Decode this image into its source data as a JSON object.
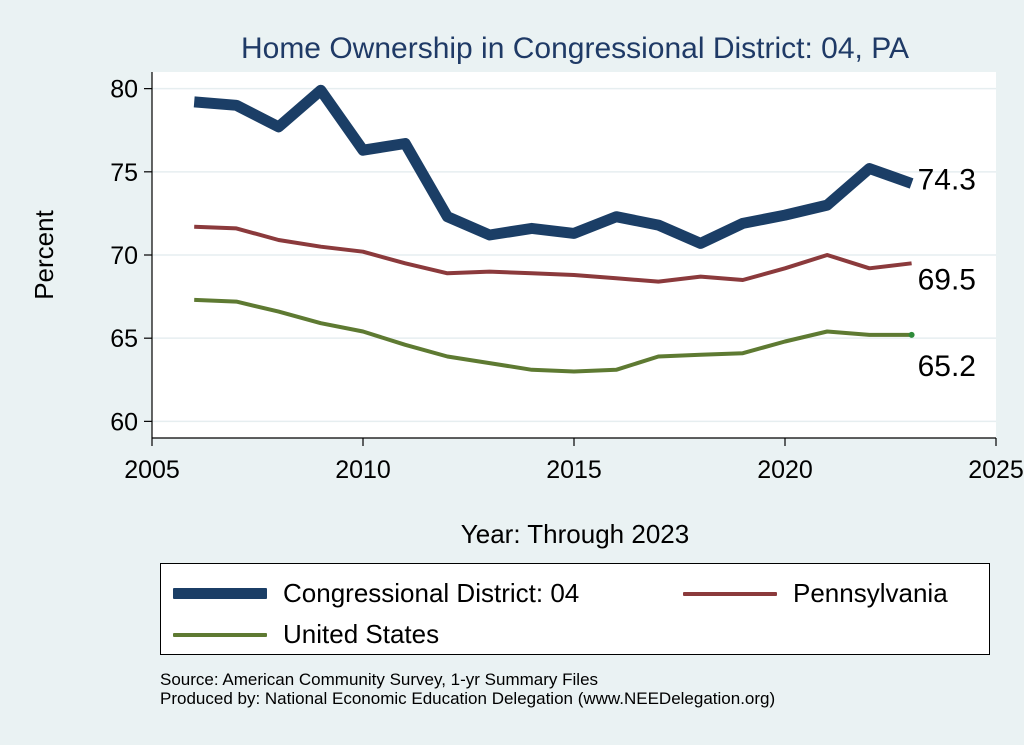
{
  "chart_data": {
    "type": "line",
    "title": "Home Ownership in Congressional District:  04, PA",
    "xlabel": "Year: Through 2023",
    "ylabel": "Percent",
    "xlim": [
      2005,
      2025
    ],
    "ylim": [
      59,
      81
    ],
    "x_ticks": [
      2005,
      2010,
      2015,
      2020,
      2025
    ],
    "y_ticks": [
      60,
      65,
      70,
      75,
      80
    ],
    "grid": true,
    "x": [
      2006,
      2007,
      2008,
      2009,
      2010,
      2011,
      2012,
      2013,
      2014,
      2015,
      2016,
      2017,
      2018,
      2019,
      2020,
      2021,
      2022,
      2023
    ],
    "series": [
      {
        "name": "Congressional District:  04",
        "color": "#1b3e66",
        "width": 11,
        "values": [
          79.2,
          79.0,
          77.7,
          79.9,
          76.3,
          76.7,
          72.3,
          71.2,
          71.6,
          71.3,
          72.3,
          71.8,
          70.7,
          71.9,
          72.4,
          73.0,
          75.2,
          74.3
        ],
        "end_label": "74.3"
      },
      {
        "name": "Pennsylvania",
        "color": "#8b3a3c",
        "width": 4,
        "values": [
          71.7,
          71.6,
          70.9,
          70.5,
          70.2,
          69.5,
          68.9,
          69.0,
          68.9,
          68.8,
          68.6,
          68.4,
          68.7,
          68.5,
          69.2,
          70.0,
          69.2,
          69.5
        ],
        "end_label": "69.5"
      },
      {
        "name": "United States",
        "color": "#5e7a32",
        "width": 4,
        "values": [
          67.3,
          67.2,
          66.6,
          65.9,
          65.4,
          64.6,
          63.9,
          63.5,
          63.1,
          63.0,
          63.1,
          63.9,
          64.0,
          64.1,
          64.8,
          65.4,
          65.2,
          65.2
        ],
        "end_label": "65.2"
      }
    ],
    "legend_position": "bottom"
  },
  "legend": {
    "entries": [
      {
        "label": "Congressional District:  04",
        "color": "#1b3e66"
      },
      {
        "label": "Pennsylvania",
        "color": "#8b3a3c"
      },
      {
        "label": "United States",
        "color": "#5e7a32"
      }
    ]
  },
  "source": {
    "line1": "Source: American Community Survey, 1-yr Summary Files",
    "line2": "Produced by: National Economic Education Delegation (www.NEEDelegation.org)"
  }
}
